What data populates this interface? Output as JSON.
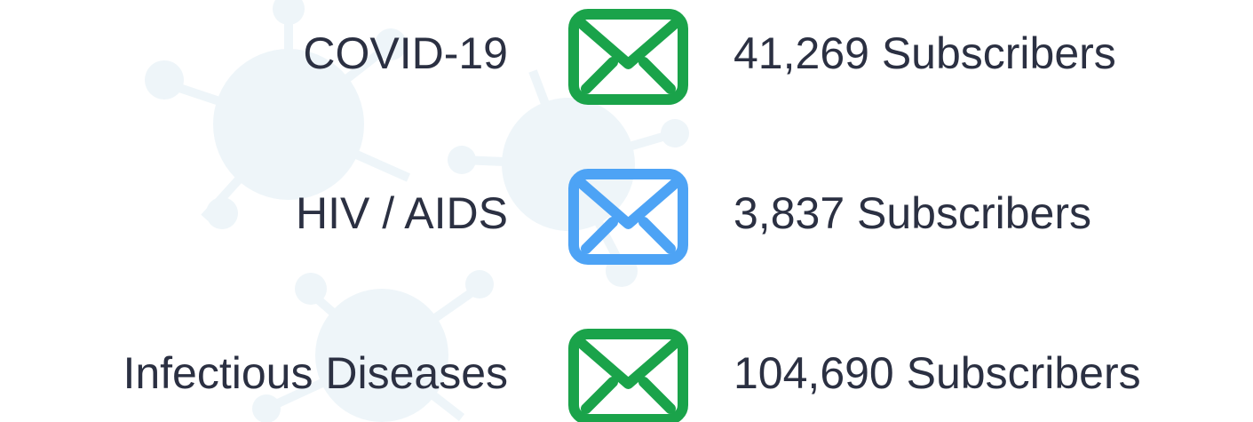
{
  "rows": [
    {
      "topic": "COVID-19",
      "icon_color": "#1aa34a",
      "subscribers": "41,269 Subscribers"
    },
    {
      "topic": "HIV / AIDS",
      "icon_color": "#4da3f5",
      "subscribers": "3,837 Subscribers"
    },
    {
      "topic": "Infectious Diseases",
      "icon_color": "#1aa34a",
      "subscribers": "104,690 Subscribers"
    }
  ]
}
